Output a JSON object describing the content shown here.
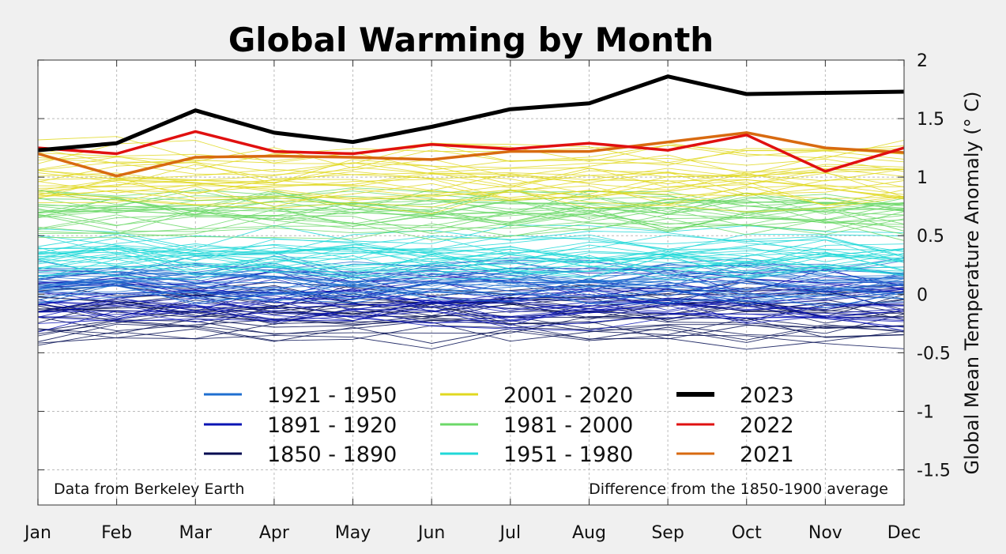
{
  "chart_data": {
    "type": "line",
    "title": "Global Warming by Month",
    "ylabel": "Global Mean Temperature Anomaly (° C)",
    "xlabel": "",
    "categories": [
      "Jan",
      "Feb",
      "Mar",
      "Apr",
      "May",
      "Jun",
      "Jul",
      "Aug",
      "Sep",
      "Oct",
      "Nov",
      "Dec"
    ],
    "ylim": [
      -1.8,
      2.0
    ],
    "yticks": [
      2,
      1.5,
      1,
      0.5,
      0,
      -0.5,
      -1,
      -1.5
    ],
    "ytick_labels": [
      "2",
      "1.5",
      "1",
      "0.5",
      "0",
      "-0.5",
      "-1",
      "-1.5"
    ],
    "grid": true,
    "y_axis_side": "right",
    "annotations": {
      "source": "Data from Berkeley Earth",
      "baseline": "Difference from the 1850-1900 average"
    },
    "legend_placement": "lower-center",
    "legend": [
      {
        "label": "1921 - 1950",
        "color": "#1f6fd0",
        "width": 3
      },
      {
        "label": "1891 - 1920",
        "color": "#0a14b4",
        "width": 3
      },
      {
        "label": "1850 - 1890",
        "color": "#000a50",
        "width": 3
      },
      {
        "label": "2001 - 2020",
        "color": "#e0d820",
        "width": 3
      },
      {
        "label": "1981 - 2000",
        "color": "#6cd868",
        "width": 3
      },
      {
        "label": "1951 - 1980",
        "color": "#20d8d8",
        "width": 3
      },
      {
        "label": "2023",
        "color": "#000000",
        "width": 6
      },
      {
        "label": "2022",
        "color": "#e01010",
        "width": 3
      },
      {
        "label": "2021",
        "color": "#d86a10",
        "width": 3
      }
    ],
    "series": [
      {
        "name": "2023",
        "color": "#000000",
        "width": 5,
        "values": [
          1.23,
          1.29,
          1.57,
          1.38,
          1.3,
          1.43,
          1.58,
          1.63,
          1.86,
          1.71,
          1.72,
          1.73
        ]
      },
      {
        "name": "2022",
        "color": "#e01010",
        "width": 3.5,
        "values": [
          1.25,
          1.2,
          1.39,
          1.22,
          1.2,
          1.28,
          1.24,
          1.29,
          1.23,
          1.36,
          1.05,
          1.25
        ]
      },
      {
        "name": "2021",
        "color": "#d86a10",
        "width": 3.5,
        "values": [
          1.2,
          1.01,
          1.17,
          1.18,
          1.17,
          1.15,
          1.22,
          1.22,
          1.3,
          1.38,
          1.25,
          1.21
        ]
      }
    ],
    "background_bands": [
      {
        "period": "1850 - 1890",
        "color": "#000a50",
        "center": -0.18,
        "spread": 0.22
      },
      {
        "period": "1891 - 1920",
        "color": "#0a14b4",
        "center": -0.06,
        "spread": 0.18
      },
      {
        "period": "1921 - 1950",
        "color": "#1f6fd0",
        "center": 0.12,
        "spread": 0.15
      },
      {
        "period": "1951 - 1980",
        "color": "#20d8d8",
        "center": 0.36,
        "spread": 0.14
      },
      {
        "period": "1981 - 2000",
        "color": "#6cd868",
        "center": 0.68,
        "spread": 0.16
      },
      {
        "period": "2001 - 2020",
        "color": "#e0d820",
        "center": 1.02,
        "spread": 0.24
      }
    ]
  }
}
